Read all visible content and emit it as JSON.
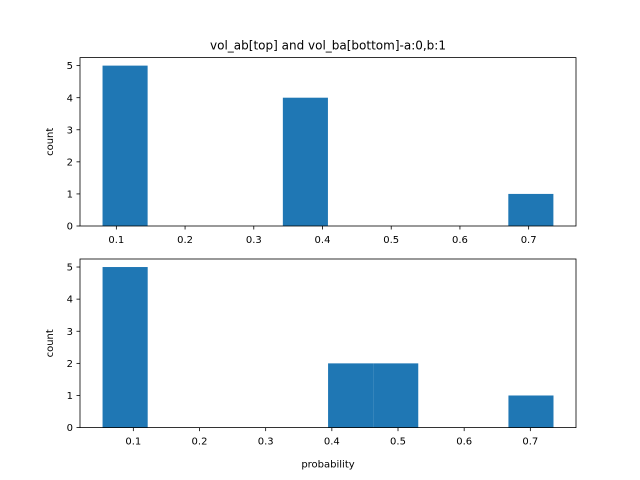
{
  "chart_data": [
    {
      "type": "bar",
      "title": "vol_ab[top] and vol_ba[bottom]-a:0,b:1",
      "xlabel": "",
      "ylabel": "count",
      "xlim": [
        0.0471,
        0.7689
      ],
      "ylim": [
        0,
        5.25
      ],
      "xticks": [
        "0.1",
        "0.2",
        "0.3",
        "0.4",
        "0.5",
        "0.6",
        "0.7"
      ],
      "xtick_values": [
        0.1,
        0.2,
        0.3,
        0.4,
        0.5,
        0.6,
        0.7
      ],
      "yticks": [
        "0",
        "1",
        "2",
        "3",
        "4",
        "5"
      ],
      "ytick_values": [
        0,
        1,
        2,
        3,
        4,
        5
      ],
      "bins": [
        {
          "start": 0.0799,
          "end": 0.1455,
          "count": 5
        },
        {
          "start": 0.1455,
          "end": 0.2111,
          "count": 0
        },
        {
          "start": 0.2111,
          "end": 0.2767,
          "count": 0
        },
        {
          "start": 0.2767,
          "end": 0.3423,
          "count": 0
        },
        {
          "start": 0.3423,
          "end": 0.4079,
          "count": 4
        },
        {
          "start": 0.4079,
          "end": 0.4735,
          "count": 0
        },
        {
          "start": 0.4735,
          "end": 0.5391,
          "count": 0
        },
        {
          "start": 0.5391,
          "end": 0.6047,
          "count": 0
        },
        {
          "start": 0.6047,
          "end": 0.6704,
          "count": 0
        },
        {
          "start": 0.6704,
          "end": 0.736,
          "count": 1
        }
      ],
      "color": "#1f77b4"
    },
    {
      "type": "bar",
      "title": "",
      "xlabel": "probability",
      "ylabel": "count",
      "xlim": [
        0.0194,
        0.769
      ],
      "ylim": [
        0,
        5.25
      ],
      "xticks": [
        "0.1",
        "0.2",
        "0.3",
        "0.4",
        "0.5",
        "0.6",
        "0.7"
      ],
      "xtick_values": [
        0.1,
        0.2,
        0.3,
        0.4,
        0.5,
        0.6,
        0.7
      ],
      "yticks": [
        "0",
        "1",
        "2",
        "3",
        "4",
        "5"
      ],
      "ytick_values": [
        0,
        1,
        2,
        3,
        4,
        5
      ],
      "bins": [
        {
          "start": 0.0535,
          "end": 0.1217,
          "count": 5
        },
        {
          "start": 0.1217,
          "end": 0.1898,
          "count": 0
        },
        {
          "start": 0.1898,
          "end": 0.258,
          "count": 0
        },
        {
          "start": 0.258,
          "end": 0.3261,
          "count": 0
        },
        {
          "start": 0.3261,
          "end": 0.3943,
          "count": 0
        },
        {
          "start": 0.3943,
          "end": 0.4624,
          "count": 2
        },
        {
          "start": 0.4624,
          "end": 0.5306,
          "count": 2
        },
        {
          "start": 0.5306,
          "end": 0.5987,
          "count": 0
        },
        {
          "start": 0.5987,
          "end": 0.6669,
          "count": 0
        },
        {
          "start": 0.6669,
          "end": 0.735,
          "count": 1
        }
      ],
      "color": "#1f77b4"
    }
  ]
}
